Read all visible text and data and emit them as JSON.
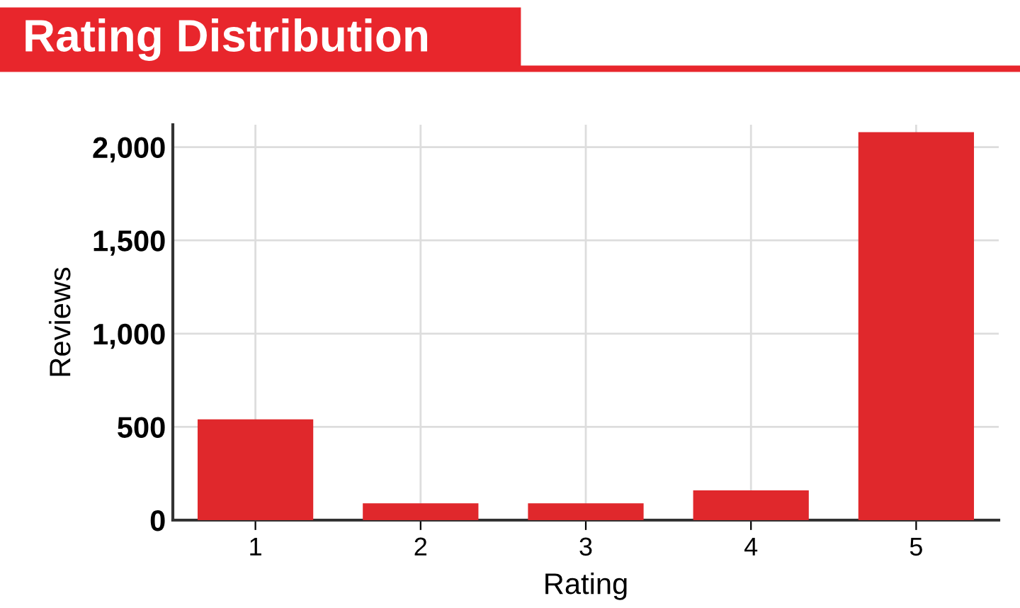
{
  "chart_data": {
    "type": "bar",
    "title": "Rating Distribution",
    "xlabel": "Rating",
    "ylabel": "Reviews",
    "categories": [
      "1",
      "2",
      "3",
      "4",
      "5"
    ],
    "values": [
      540,
      90,
      90,
      160,
      2080
    ],
    "color": "#e0282c",
    "ylim": [
      0,
      2120
    ],
    "yticks": [
      0,
      {
        "value": 500,
        "label": "500"
      },
      {
        "value": 1000,
        "label": "1,000"
      },
      {
        "value": 1500,
        "label": "1,500"
      },
      {
        "value": 2000,
        "label": "2,000"
      }
    ],
    "grid": true
  }
}
